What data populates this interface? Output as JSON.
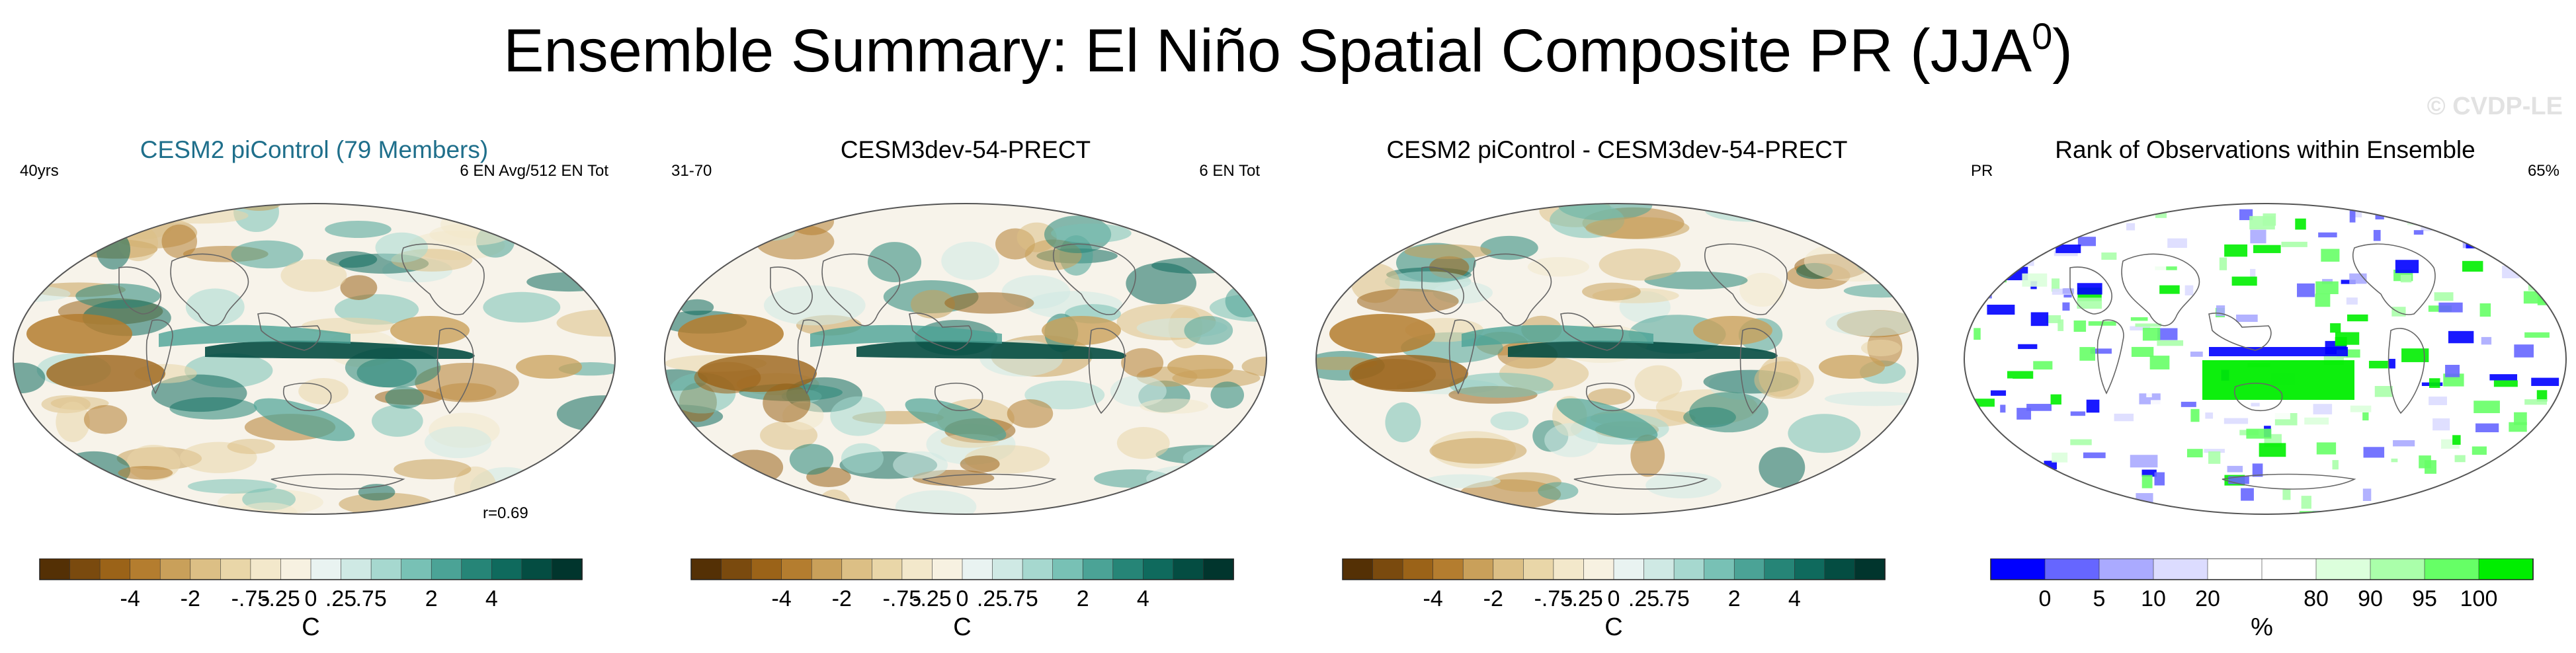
{
  "title": "Ensemble Summary: El Niño Spatial Composite PR (JJA",
  "title_sup": "0",
  "title_close": ")",
  "watermark": "© CVDP-LE",
  "panels": [
    {
      "title": "CESM2 piControl (79 Members)",
      "title_color": "#1f6f8b",
      "left_label": "40yrs",
      "right_label": "6 EN Avg/512 EN Tot",
      "corr_label": "r=0.69",
      "palette": "diverging",
      "colorbar": {
        "ticks": [
          "-4",
          "-2",
          "-.75",
          "-.25",
          "0",
          ".25",
          ".75",
          "2",
          "4"
        ],
        "unit": "C"
      }
    },
    {
      "title": "CESM3dev-54-PRECT",
      "title_color": "#000000",
      "left_label": "31-70",
      "right_label": "6 EN Tot",
      "corr_label": "",
      "palette": "diverging",
      "colorbar": {
        "ticks": [
          "-4",
          "-2",
          "-.75",
          "-.25",
          "0",
          ".25",
          ".75",
          "2",
          "4"
        ],
        "unit": "C"
      }
    },
    {
      "title": "CESM2 piControl - CESM3dev-54-PRECT",
      "title_color": "#000000",
      "left_label": "",
      "right_label": "",
      "corr_label": "",
      "palette": "diverging",
      "colorbar": {
        "ticks": [
          "-4",
          "-2",
          "-.75",
          "-.25",
          "0",
          ".25",
          ".75",
          "2",
          "4"
        ],
        "unit": "C"
      }
    },
    {
      "title": "Rank of Observations within Ensemble",
      "title_color": "#000000",
      "left_label": "PR",
      "right_label": "65%",
      "corr_label": "",
      "palette": "rank",
      "colorbar": {
        "ticks": [
          "0",
          "5",
          "10",
          "20",
          "80",
          "90",
          "95",
          "100"
        ],
        "unit": "%"
      }
    }
  ],
  "colors": {
    "diverging": [
      "#543005",
      "#7a4a0e",
      "#9b6318",
      "#b47d2f",
      "#c9a05a",
      "#dcbf85",
      "#e9d6a8",
      "#f3e8cb",
      "#f7f1e1",
      "#e9f3f1",
      "#cfe9e4",
      "#a6d8cf",
      "#78c1b5",
      "#4ba396",
      "#268577",
      "#0f6a5d",
      "#044d42",
      "#01352d"
    ],
    "rank": [
      "#0000ff",
      "#6666ff",
      "#aaaaff",
      "#dcdcff",
      "#ffffff",
      "#ffffff",
      "#dcffdc",
      "#aaffaa",
      "#66ff66",
      "#00ee00"
    ]
  },
  "chart_data": {
    "type": "heatmap",
    "title": "Ensemble Summary: El Niño Spatial Composite PR (JJA0)",
    "maps": [
      {
        "name": "CESM2 piControl (79 Members)",
        "colorbar_ticks": [
          -4,
          -2,
          -0.75,
          -0.25,
          0,
          0.25,
          0.75,
          2,
          4
        ],
        "unit": "C",
        "pattern_correlation": 0.69
      },
      {
        "name": "CESM3dev-54-PRECT",
        "colorbar_ticks": [
          -4,
          -2,
          -0.75,
          -0.25,
          0,
          0.25,
          0.75,
          2,
          4
        ],
        "unit": "C"
      },
      {
        "name": "CESM2 piControl - CESM3dev-54-PRECT",
        "colorbar_ticks": [
          -4,
          -2,
          -0.75,
          -0.25,
          0,
          0.25,
          0.75,
          2,
          4
        ],
        "unit": "C"
      },
      {
        "name": "Rank of Observations within Ensemble",
        "colorbar_ticks": [
          0,
          5,
          10,
          20,
          80,
          90,
          95,
          100
        ],
        "unit": "%",
        "percent_label": "65%"
      }
    ]
  }
}
